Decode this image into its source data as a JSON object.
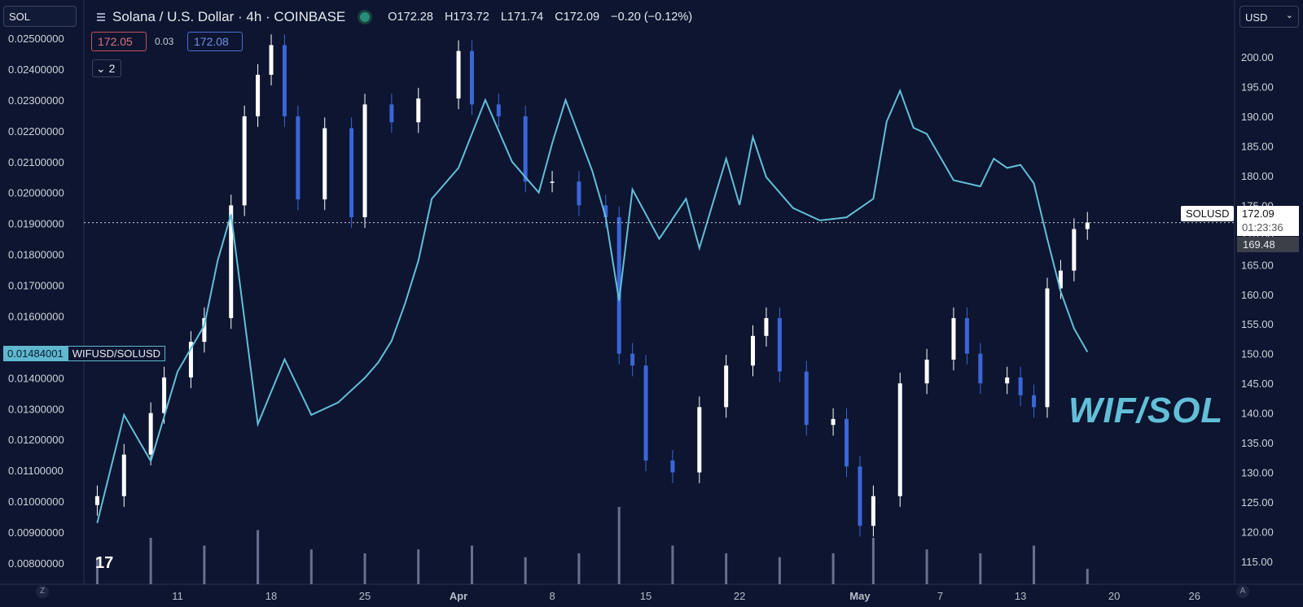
{
  "toolbar": {
    "symbol_input": "SOL",
    "title": "Solana / U.S. Dollar · 4h · COINBASE",
    "ohlc": {
      "open": "O172.28",
      "high": "H173.72",
      "low": "L171.74",
      "close": "C172.09",
      "change": "−0.20 (−0.12%)"
    },
    "bid": "172.05",
    "spread": "0.03",
    "ask": "172.08",
    "collapse_label": "⌄ 2",
    "currency": "USD"
  },
  "labels": {
    "wif_value": "0.01484001",
    "wif_name": "WIFUSD/SOLUSD",
    "sol_name": "SOLUSD",
    "sol_price": "172.09",
    "sol_countdown": "01:23:36",
    "sol_price2": "169.48",
    "watermark": "WIF/SOL",
    "tv_logo": "17",
    "corner_left": "Z",
    "corner_right": "A"
  },
  "colors": {
    "background": "#0d1530",
    "candle_up": "#ffffff",
    "candle_down": "#3a66d8",
    "line": "#62bfd8",
    "volume": "#8f97b6"
  },
  "chart_data": {
    "type": "line",
    "title": "Solana / U.S. Dollar · 4h · COINBASE",
    "x_ticks": [
      "11",
      "18",
      "25",
      "Apr",
      "8",
      "15",
      "22",
      "May",
      "7",
      "13",
      "20",
      "26"
    ],
    "left_axis": {
      "ticks": [
        "0.02500000",
        "0.02400000",
        "0.02300000",
        "0.02200000",
        "0.02100000",
        "0.02000000",
        "0.01900000",
        "0.01800000",
        "0.01700000",
        "0.01600000",
        "0.01400000",
        "0.01300000",
        "0.01200000",
        "0.01100000",
        "0.01000000",
        "0.00900000",
        "0.00800000"
      ],
      "ylim": [
        0.008,
        0.025
      ]
    },
    "right_axis": {
      "ticks": [
        "200.00",
        "195.00",
        "190.00",
        "185.00",
        "180.00",
        "175.00",
        "170.00",
        "165.00",
        "160.00",
        "155.00",
        "150.00",
        "145.00",
        "140.00",
        "135.00",
        "130.00",
        "125.00",
        "120.00",
        "115.00"
      ],
      "ylim": [
        115,
        200
      ]
    },
    "series": [
      {
        "name": "WIFUSD/SOLUSD",
        "axis": "left",
        "style": "line",
        "x": [
          "Mar 5",
          "Mar 7",
          "Mar 9",
          "Mar 11",
          "Mar 13",
          "Mar 14",
          "Mar 15",
          "Mar 17",
          "Mar 19",
          "Mar 21",
          "Mar 23",
          "Mar 25",
          "Mar 26",
          "Mar 27",
          "Mar 28",
          "Mar 29",
          "Mar 30",
          "Apr 1",
          "Apr 3",
          "Apr 5",
          "Apr 7",
          "Apr 8",
          "Apr 9",
          "Apr 11",
          "Apr 12",
          "Apr 13",
          "Apr 14",
          "Apr 16",
          "Apr 18",
          "Apr 19",
          "Apr 21",
          "Apr 22",
          "Apr 23",
          "Apr 24",
          "Apr 26",
          "Apr 28",
          "Apr 30",
          "May 2",
          "May 3",
          "May 4",
          "May 5",
          "May 6",
          "May 8",
          "May 10",
          "May 11",
          "May 12",
          "May 13",
          "May 14",
          "May 15",
          "May 16",
          "May 17",
          "May 18"
        ],
        "values": [
          0.0093,
          0.0128,
          0.0113,
          0.0142,
          0.0157,
          0.0178,
          0.0193,
          0.0125,
          0.0146,
          0.0128,
          0.0132,
          0.014,
          0.0145,
          0.0152,
          0.0164,
          0.0178,
          0.0198,
          0.0208,
          0.023,
          0.021,
          0.02,
          0.0216,
          0.023,
          0.0207,
          0.0192,
          0.0165,
          0.0201,
          0.0185,
          0.0198,
          0.0182,
          0.0211,
          0.0196,
          0.0218,
          0.0205,
          0.0195,
          0.0191,
          0.0192,
          0.0198,
          0.0223,
          0.0233,
          0.0221,
          0.0219,
          0.0204,
          0.0202,
          0.0211,
          0.0208,
          0.0209,
          0.0203,
          0.0185,
          0.0168,
          0.0156,
          0.01484
        ]
      },
      {
        "name": "SOLUSD",
        "axis": "right",
        "style": "candles",
        "x": [
          "Mar 5",
          "Mar 7",
          "Mar 9",
          "Mar 10",
          "Mar 12",
          "Mar 13",
          "Mar 15",
          "Mar 16",
          "Mar 17",
          "Mar 18",
          "Mar 19",
          "Mar 20",
          "Mar 22",
          "Mar 24",
          "Mar 25",
          "Mar 27",
          "Mar 29",
          "Apr 1",
          "Apr 2",
          "Apr 4",
          "Apr 6",
          "Apr 8",
          "Apr 10",
          "Apr 12",
          "Apr 13",
          "Apr 14",
          "Apr 15",
          "Apr 17",
          "Apr 19",
          "Apr 21",
          "Apr 23",
          "Apr 24",
          "Apr 25",
          "Apr 27",
          "Apr 29",
          "Apr 30",
          "May 1",
          "May 2",
          "May 4",
          "May 6",
          "May 8",
          "May 9",
          "May 10",
          "May 12",
          "May 13",
          "May 14",
          "May 15",
          "May 16",
          "May 17",
          "May 18"
        ],
        "values": [
          126,
          133,
          140,
          146,
          152,
          156,
          175,
          190,
          197,
          202,
          190,
          176,
          188,
          173,
          192,
          189,
          193,
          201,
          192,
          190,
          179,
          179,
          175,
          173,
          150,
          148,
          132,
          130,
          141,
          148,
          153,
          156,
          147,
          138,
          139,
          131,
          121,
          126,
          145,
          149,
          156,
          150,
          145,
          146,
          143,
          141,
          161,
          164,
          171,
          172.09
        ]
      },
      {
        "name": "Volume",
        "axis": "none",
        "style": "bars",
        "x": [
          "Mar 5",
          "Mar 9",
          "Mar 13",
          "Mar 17",
          "Mar 21",
          "Mar 25",
          "Mar 29",
          "Apr 2",
          "Apr 6",
          "Apr 10",
          "Apr 13",
          "Apr 17",
          "Apr 21",
          "Apr 25",
          "Apr 29",
          "May 2",
          "May 6",
          "May 10",
          "May 14",
          "May 18"
        ],
        "values": [
          0.35,
          0.6,
          0.5,
          0.7,
          0.45,
          0.4,
          0.45,
          0.5,
          0.35,
          0.4,
          1.0,
          0.5,
          0.4,
          0.35,
          0.4,
          0.6,
          0.45,
          0.4,
          0.5,
          0.2
        ]
      }
    ],
    "current_price_line": 172.09,
    "grid": false,
    "legend": "none"
  }
}
